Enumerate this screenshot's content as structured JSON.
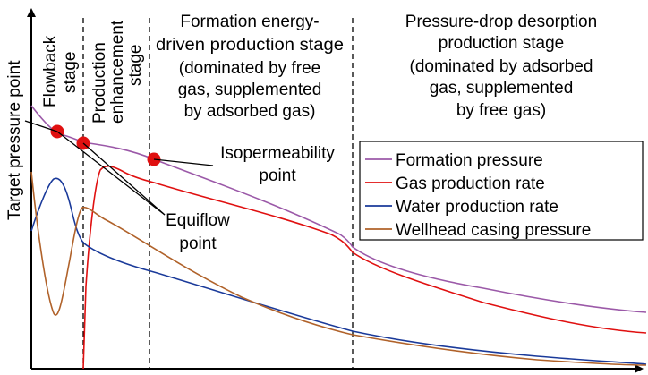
{
  "axes": {
    "ylabel": "Target pressure point"
  },
  "stages": {
    "flowback": [
      "Flowback",
      "stage"
    ],
    "production_enhancement": [
      "Production",
      "enhancement",
      "stage"
    ],
    "formation_energy": [
      "Formation energy-",
      "driven production stage",
      "(dominated by free",
      "gas, supplemented",
      "by adsorbed gas)"
    ],
    "pressure_drop": [
      "Pressure-drop desorption",
      "production stage",
      "(dominated by adsorbed",
      "gas, supplemented",
      "by free gas)"
    ]
  },
  "annotations": {
    "isopermeability": [
      "Isopermeability",
      "point"
    ],
    "equiflow": [
      "Equiflow",
      "point"
    ]
  },
  "legend": [
    {
      "label": "Formation pressure",
      "color": "#9b59a8"
    },
    {
      "label": "Gas production rate",
      "color": "#e01010"
    },
    {
      "label": "Water production rate",
      "color": "#1a3a9a"
    },
    {
      "label": "Wellhead casing pressure",
      "color": "#b0622a"
    }
  ],
  "colors": {
    "marker": "#e01010",
    "axis": "#000000",
    "divider": "#000000"
  }
}
